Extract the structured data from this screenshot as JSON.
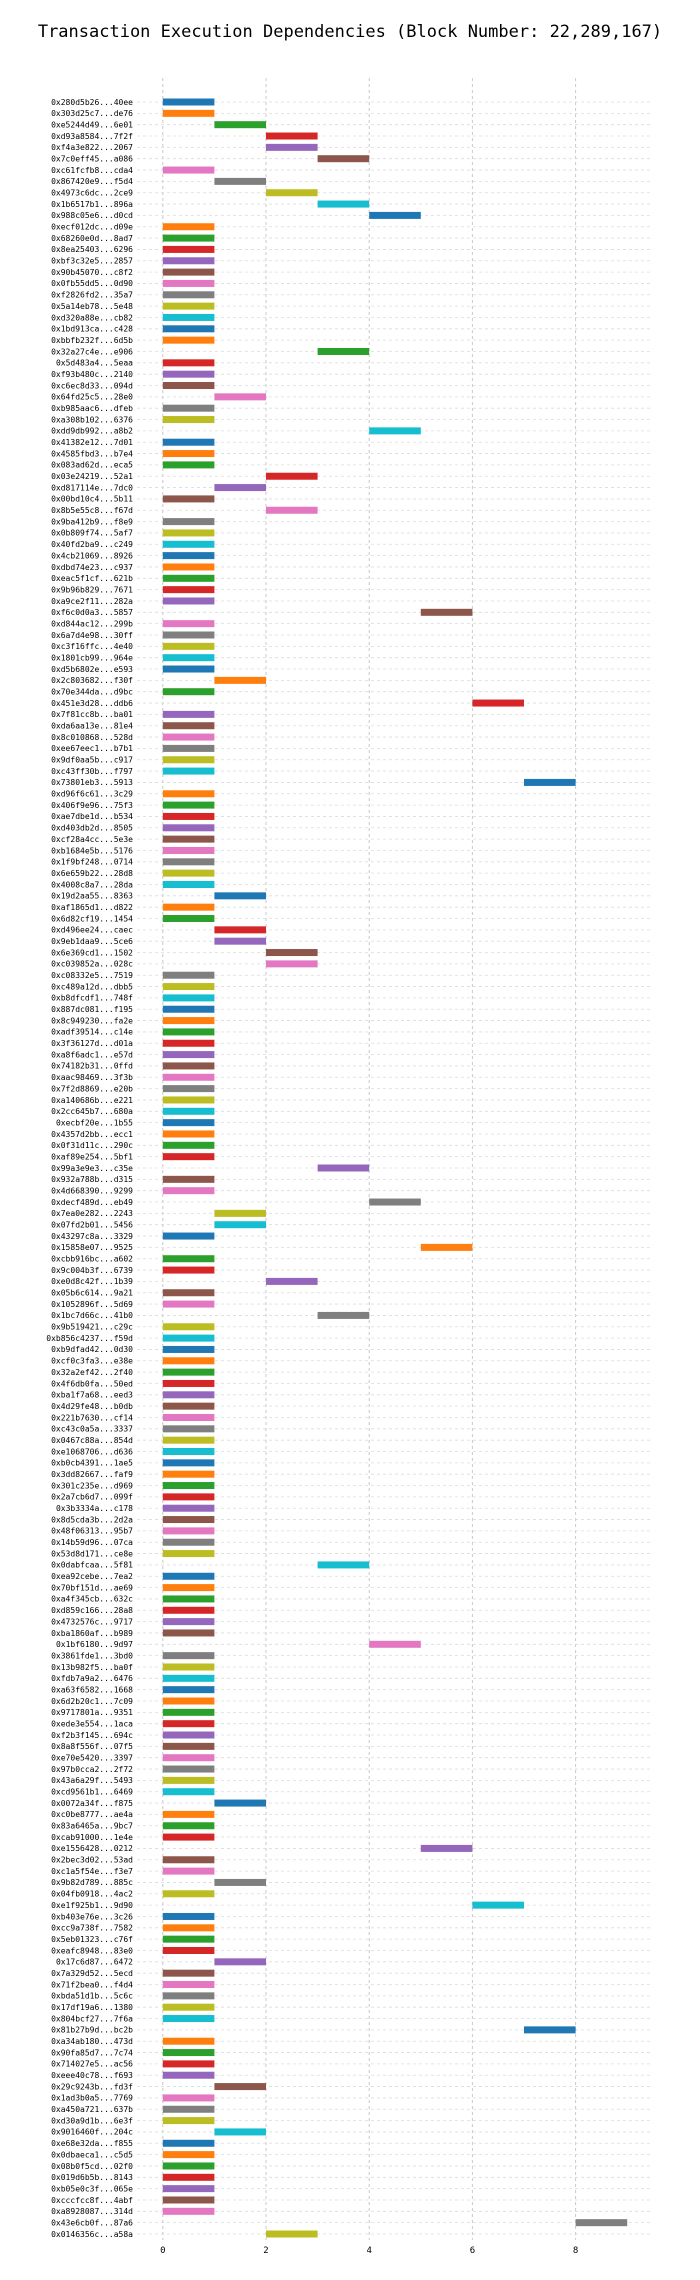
{
  "chart_data": {
    "type": "bar",
    "subtype": "horizontal-gantt",
    "title": "Transaction Execution Dependencies (Block Number: 22,289,167)",
    "xlabel": "",
    "ylabel": "",
    "xlim": [
      -0.5,
      9.5
    ],
    "xticks": [
      0,
      2,
      4,
      6,
      8
    ],
    "grid": true,
    "legend": "none",
    "palette": [
      "#1f77b4",
      "#ff7f0e",
      "#2ca02c",
      "#d62728",
      "#9467bd",
      "#8c564b",
      "#e377c2",
      "#7f7f7f",
      "#bcbd22",
      "#17becf"
    ],
    "transactions": [
      {
        "label": "0x280d5b26...40ee",
        "start": 0,
        "end": 1
      },
      {
        "label": "0x303d25c7...de76",
        "start": 0,
        "end": 1
      },
      {
        "label": "0xe5244d49...6e01",
        "start": 1,
        "end": 2
      },
      {
        "label": "0xd93a8584...7f2f",
        "start": 2,
        "end": 3
      },
      {
        "label": "0xf4a3e822...2067",
        "start": 2,
        "end": 3
      },
      {
        "label": "0x7c0eff45...a086",
        "start": 3,
        "end": 4
      },
      {
        "label": "0xc61fcfb8...cda4",
        "start": 0,
        "end": 1
      },
      {
        "label": "0x867420e9...f5d4",
        "start": 1,
        "end": 2
      },
      {
        "label": "0x4973c6dc...2ce9",
        "start": 2,
        "end": 3
      },
      {
        "label": "0x1b6517b1...896a",
        "start": 3,
        "end": 4
      },
      {
        "label": "0x988c05e6...d0cd",
        "start": 4,
        "end": 5
      },
      {
        "label": "0xecf012dc...d09e",
        "start": 0,
        "end": 1
      },
      {
        "label": "0x68260e0d...8ad7",
        "start": 0,
        "end": 1
      },
      {
        "label": "0x8ea25403...6296",
        "start": 0,
        "end": 1
      },
      {
        "label": "0xbf3c32e5...2857",
        "start": 0,
        "end": 1
      },
      {
        "label": "0x90b45070...c8f2",
        "start": 0,
        "end": 1
      },
      {
        "label": "0x0fb55dd5...0d90",
        "start": 0,
        "end": 1
      },
      {
        "label": "0xf2826fd2...35a7",
        "start": 0,
        "end": 1
      },
      {
        "label": "0x5a14eb78...5e48",
        "start": 0,
        "end": 1
      },
      {
        "label": "0xd320a88e...cb82",
        "start": 0,
        "end": 1
      },
      {
        "label": "0x1bd913ca...c428",
        "start": 0,
        "end": 1
      },
      {
        "label": "0xbbfb232f...6d5b",
        "start": 0,
        "end": 1
      },
      {
        "label": "0x32a27c4e...e906",
        "start": 3,
        "end": 4
      },
      {
        "label": "0x5d483a4...5eaa",
        "start": 0,
        "end": 1
      },
      {
        "label": "0xf93b480c...2140",
        "start": 0,
        "end": 1
      },
      {
        "label": "0xc6ec8d33...094d",
        "start": 0,
        "end": 1
      },
      {
        "label": "0x64fd25c5...28e0",
        "start": 1,
        "end": 2
      },
      {
        "label": "0xb985aac6...dfeb",
        "start": 0,
        "end": 1
      },
      {
        "label": "0xa308b102...6376",
        "start": 0,
        "end": 1
      },
      {
        "label": "0xdd9db992...a8b2",
        "start": 4,
        "end": 5
      },
      {
        "label": "0x41382e12...7d01",
        "start": 0,
        "end": 1
      },
      {
        "label": "0x4585fbd3...b7e4",
        "start": 0,
        "end": 1
      },
      {
        "label": "0x083ad62d...eca5",
        "start": 0,
        "end": 1
      },
      {
        "label": "0x03e24219...52a1",
        "start": 2,
        "end": 3
      },
      {
        "label": "0xd817114e...7dc0",
        "start": 1,
        "end": 2
      },
      {
        "label": "0x00bd10c4...5b11",
        "start": 0,
        "end": 1
      },
      {
        "label": "0x8b5e55c8...f67d",
        "start": 2,
        "end": 3
      },
      {
        "label": "0x9ba412b9...f8e9",
        "start": 0,
        "end": 1
      },
      {
        "label": "0x0b809f74...5af7",
        "start": 0,
        "end": 1
      },
      {
        "label": "0x40fd2ba9...c249",
        "start": 0,
        "end": 1
      },
      {
        "label": "0x4cb21069...8926",
        "start": 0,
        "end": 1
      },
      {
        "label": "0xdbd74e23...c937",
        "start": 0,
        "end": 1
      },
      {
        "label": "0xeac5f1cf...621b",
        "start": 0,
        "end": 1
      },
      {
        "label": "0x9b96b829...7671",
        "start": 0,
        "end": 1
      },
      {
        "label": "0xa9ce2f11...282a",
        "start": 0,
        "end": 1
      },
      {
        "label": "0xf6c0d0a3...5857",
        "start": 5,
        "end": 6
      },
      {
        "label": "0xd844ac12...299b",
        "start": 0,
        "end": 1
      },
      {
        "label": "0x6a7d4e98...30ff",
        "start": 0,
        "end": 1
      },
      {
        "label": "0xc3f16ffc...4e40",
        "start": 0,
        "end": 1
      },
      {
        "label": "0x1801cb99...964e",
        "start": 0,
        "end": 1
      },
      {
        "label": "0xd5b6802e...e593",
        "start": 0,
        "end": 1
      },
      {
        "label": "0x2c803682...f30f",
        "start": 1,
        "end": 2
      },
      {
        "label": "0x70e344da...d9bc",
        "start": 0,
        "end": 1
      },
      {
        "label": "0x451e3d28...ddb6",
        "start": 6,
        "end": 7
      },
      {
        "label": "0x7f81cc8b...ba01",
        "start": 0,
        "end": 1
      },
      {
        "label": "0xda6aa13e...81e4",
        "start": 0,
        "end": 1
      },
      {
        "label": "0x8c010868...528d",
        "start": 0,
        "end": 1
      },
      {
        "label": "0xee67eec1...b7b1",
        "start": 0,
        "end": 1
      },
      {
        "label": "0x9df0aa5b...c917",
        "start": 0,
        "end": 1
      },
      {
        "label": "0xc43ff30b...f797",
        "start": 0,
        "end": 1
      },
      {
        "label": "0x73801eb3...5913",
        "start": 7,
        "end": 8
      },
      {
        "label": "0xd96f6c61...3c29",
        "start": 0,
        "end": 1
      },
      {
        "label": "0x406f9e96...75f3",
        "start": 0,
        "end": 1
      },
      {
        "label": "0xae7dbe1d...b534",
        "start": 0,
        "end": 1
      },
      {
        "label": "0xd403db2d...8505",
        "start": 0,
        "end": 1
      },
      {
        "label": "0xcf28a4cc...5e3e",
        "start": 0,
        "end": 1
      },
      {
        "label": "0xb1684e5b...5176",
        "start": 0,
        "end": 1
      },
      {
        "label": "0x1f9bf248...0714",
        "start": 0,
        "end": 1
      },
      {
        "label": "0x6e659b22...28d8",
        "start": 0,
        "end": 1
      },
      {
        "label": "0x4008c8a7...28da",
        "start": 0,
        "end": 1
      },
      {
        "label": "0x19d2aa55...8363",
        "start": 1,
        "end": 2
      },
      {
        "label": "0xaf1865d1...d822",
        "start": 0,
        "end": 1
      },
      {
        "label": "0x6d82cf19...1454",
        "start": 0,
        "end": 1
      },
      {
        "label": "0xd496ee24...caec",
        "start": 1,
        "end": 2
      },
      {
        "label": "0x9eb1daa9...5ce6",
        "start": 1,
        "end": 2
      },
      {
        "label": "0x6e369cd1...1502",
        "start": 2,
        "end": 3
      },
      {
        "label": "0xc039852a...028c",
        "start": 2,
        "end": 3
      },
      {
        "label": "0xc08332e5...7519",
        "start": 0,
        "end": 1
      },
      {
        "label": "0xc489a12d...dbb5",
        "start": 0,
        "end": 1
      },
      {
        "label": "0xb8dfcdf1...748f",
        "start": 0,
        "end": 1
      },
      {
        "label": "0x887dc081...f195",
        "start": 0,
        "end": 1
      },
      {
        "label": "0x8c949230...fa2e",
        "start": 0,
        "end": 1
      },
      {
        "label": "0xadf39514...c14e",
        "start": 0,
        "end": 1
      },
      {
        "label": "0x3f36127d...d01a",
        "start": 0,
        "end": 1
      },
      {
        "label": "0xa8f6adc1...e57d",
        "start": 0,
        "end": 1
      },
      {
        "label": "0x74182b31...0ffd",
        "start": 0,
        "end": 1
      },
      {
        "label": "0xaac98469...3f3b",
        "start": 0,
        "end": 1
      },
      {
        "label": "0x7f2d8869...e20b",
        "start": 0,
        "end": 1
      },
      {
        "label": "0xa140686b...e221",
        "start": 0,
        "end": 1
      },
      {
        "label": "0x2cc645b7...680a",
        "start": 0,
        "end": 1
      },
      {
        "label": "0xecbf20e...1b55",
        "start": 0,
        "end": 1
      },
      {
        "label": "0x4357d2bb...ecc1",
        "start": 0,
        "end": 1
      },
      {
        "label": "0x0f31d11c...290c",
        "start": 0,
        "end": 1
      },
      {
        "label": "0xaf89e254...5bf1",
        "start": 0,
        "end": 1
      },
      {
        "label": "0x99a3e9e3...c35e",
        "start": 3,
        "end": 4
      },
      {
        "label": "0x932a788b...d315",
        "start": 0,
        "end": 1
      },
      {
        "label": "0x4d668390...9299",
        "start": 0,
        "end": 1
      },
      {
        "label": "0xdecf489d...eb49",
        "start": 4,
        "end": 5
      },
      {
        "label": "0x7ea0e282...2243",
        "start": 1,
        "end": 2
      },
      {
        "label": "0x07fd2b01...5456",
        "start": 1,
        "end": 2
      },
      {
        "label": "0x43297c8a...3329",
        "start": 0,
        "end": 1
      },
      {
        "label": "0x15858e07...9525",
        "start": 5,
        "end": 6
      },
      {
        "label": "0xcbb916bc...a602",
        "start": 0,
        "end": 1
      },
      {
        "label": "0x9c004b3f...6739",
        "start": 0,
        "end": 1
      },
      {
        "label": "0xe0d8c42f...1b39",
        "start": 2,
        "end": 3
      },
      {
        "label": "0x05b6c614...9a21",
        "start": 0,
        "end": 1
      },
      {
        "label": "0x1052896f...5d69",
        "start": 0,
        "end": 1
      },
      {
        "label": "0x1bc7d66c...41b0",
        "start": 3,
        "end": 4
      },
      {
        "label": "0x9b519421...c29c",
        "start": 0,
        "end": 1
      },
      {
        "label": "0xb856c4237...f59d",
        "start": 0,
        "end": 1
      },
      {
        "label": "0xb9dfad42...0d30",
        "start": 0,
        "end": 1
      },
      {
        "label": "0xcf0c3fa3...e38e",
        "start": 0,
        "end": 1
      },
      {
        "label": "0x32a2ef42...2f40",
        "start": 0,
        "end": 1
      },
      {
        "label": "0x4f6db0fa...50ed",
        "start": 0,
        "end": 1
      },
      {
        "label": "0xba1f7a68...eed3",
        "start": 0,
        "end": 1
      },
      {
        "label": "0x4d29fe48...b0db",
        "start": 0,
        "end": 1
      },
      {
        "label": "0x221b7630...cf14",
        "start": 0,
        "end": 1
      },
      {
        "label": "0xc43c0a5a...3337",
        "start": 0,
        "end": 1
      },
      {
        "label": "0x0467c88a...854d",
        "start": 0,
        "end": 1
      },
      {
        "label": "0xe1068706...d636",
        "start": 0,
        "end": 1
      },
      {
        "label": "0xb0cb4391...1ae5",
        "start": 0,
        "end": 1
      },
      {
        "label": "0x3dd82667...faf9",
        "start": 0,
        "end": 1
      },
      {
        "label": "0x301c235e...d969",
        "start": 0,
        "end": 1
      },
      {
        "label": "0x2a7cb6d7...099f",
        "start": 0,
        "end": 1
      },
      {
        "label": "0x3b3334a...c178",
        "start": 0,
        "end": 1
      },
      {
        "label": "0x8d5cda3b...2d2a",
        "start": 0,
        "end": 1
      },
      {
        "label": "0x48f06313...95b7",
        "start": 0,
        "end": 1
      },
      {
        "label": "0x14b59d96...07ca",
        "start": 0,
        "end": 1
      },
      {
        "label": "0x53d8d171...ce8e",
        "start": 0,
        "end": 1
      },
      {
        "label": "0x0dabfcaa...5f81",
        "start": 3,
        "end": 4
      },
      {
        "label": "0xea92cebe...7ea2",
        "start": 0,
        "end": 1
      },
      {
        "label": "0x70bf151d...ae69",
        "start": 0,
        "end": 1
      },
      {
        "label": "0xa4f345cb...632c",
        "start": 0,
        "end": 1
      },
      {
        "label": "0xd859c166...28a8",
        "start": 0,
        "end": 1
      },
      {
        "label": "0x4732576c...9717",
        "start": 0,
        "end": 1
      },
      {
        "label": "0xba1860af...b989",
        "start": 0,
        "end": 1
      },
      {
        "label": "0x1bf6180...9d97",
        "start": 4,
        "end": 5
      },
      {
        "label": "0x3861fde1...3bd0",
        "start": 0,
        "end": 1
      },
      {
        "label": "0x13b982f5...ba0f",
        "start": 0,
        "end": 1
      },
      {
        "label": "0xfdb7a9a2...6476",
        "start": 0,
        "end": 1
      },
      {
        "label": "0xa63f6582...1668",
        "start": 0,
        "end": 1
      },
      {
        "label": "0x6d2b20c1...7c09",
        "start": 0,
        "end": 1
      },
      {
        "label": "0x9717801a...9351",
        "start": 0,
        "end": 1
      },
      {
        "label": "0xede3e554...1aca",
        "start": 0,
        "end": 1
      },
      {
        "label": "0xf2b3f145...694c",
        "start": 0,
        "end": 1
      },
      {
        "label": "0x8a8f556f...07f5",
        "start": 0,
        "end": 1
      },
      {
        "label": "0xe70e5420...3397",
        "start": 0,
        "end": 1
      },
      {
        "label": "0x97b0cca2...2f72",
        "start": 0,
        "end": 1
      },
      {
        "label": "0x43a6a29f...5493",
        "start": 0,
        "end": 1
      },
      {
        "label": "0xcd9561b1...6469",
        "start": 0,
        "end": 1
      },
      {
        "label": "0x0072a34f...f875",
        "start": 1,
        "end": 2
      },
      {
        "label": "0xc0be8777...ae4a",
        "start": 0,
        "end": 1
      },
      {
        "label": "0x83a6465a...9bc7",
        "start": 0,
        "end": 1
      },
      {
        "label": "0xcab91000...1e4e",
        "start": 0,
        "end": 1
      },
      {
        "label": "0xe1556428...0212",
        "start": 5,
        "end": 6
      },
      {
        "label": "0x2bec3d02...53ad",
        "start": 0,
        "end": 1
      },
      {
        "label": "0xc1a5f54e...f3e7",
        "start": 0,
        "end": 1
      },
      {
        "label": "0x9b82d789...885c",
        "start": 1,
        "end": 2
      },
      {
        "label": "0x04fb0918...4ac2",
        "start": 0,
        "end": 1
      },
      {
        "label": "0xe1f925b1...9d90",
        "start": 6,
        "end": 7
      },
      {
        "label": "0xb403e76e...3c26",
        "start": 0,
        "end": 1
      },
      {
        "label": "0xcc9a738f...7582",
        "start": 0,
        "end": 1
      },
      {
        "label": "0x5eb01323...c76f",
        "start": 0,
        "end": 1
      },
      {
        "label": "0xeafc8948...83e0",
        "start": 0,
        "end": 1
      },
      {
        "label": "0x17c6d87...6472",
        "start": 1,
        "end": 2
      },
      {
        "label": "0x7a329d52...5ecd",
        "start": 0,
        "end": 1
      },
      {
        "label": "0x71f2bea0...f4d4",
        "start": 0,
        "end": 1
      },
      {
        "label": "0xbda51d1b...5c6c",
        "start": 0,
        "end": 1
      },
      {
        "label": "0x17df19a6...1380",
        "start": 0,
        "end": 1
      },
      {
        "label": "0x804bcf27...7f6a",
        "start": 0,
        "end": 1
      },
      {
        "label": "0x81b27b9d...bc2b",
        "start": 7,
        "end": 8
      },
      {
        "label": "0xa34ab180...473d",
        "start": 0,
        "end": 1
      },
      {
        "label": "0x90fa85d7...7c74",
        "start": 0,
        "end": 1
      },
      {
        "label": "0x714027e5...ac56",
        "start": 0,
        "end": 1
      },
      {
        "label": "0xeee40c78...f693",
        "start": 0,
        "end": 1
      },
      {
        "label": "0x29c9243b...fd3f",
        "start": 1,
        "end": 2
      },
      {
        "label": "0x1ad3b0a5...7769",
        "start": 0,
        "end": 1
      },
      {
        "label": "0xa450a721...637b",
        "start": 0,
        "end": 1
      },
      {
        "label": "0xd30a9d1b...6e3f",
        "start": 0,
        "end": 1
      },
      {
        "label": "0x9016460f...204c",
        "start": 1,
        "end": 2
      },
      {
        "label": "0xe68e32da...f855",
        "start": 0,
        "end": 1
      },
      {
        "label": "0x0dbaeca1...c5d5",
        "start": 0,
        "end": 1
      },
      {
        "label": "0x08b0f5cd...02f0",
        "start": 0,
        "end": 1
      },
      {
        "label": "0x019d6b5b...8143",
        "start": 0,
        "end": 1
      },
      {
        "label": "0xb05e0c3f...065e",
        "start": 0,
        "end": 1
      },
      {
        "label": "0xcccfcc8f...4abf",
        "start": 0,
        "end": 1
      },
      {
        "label": "0xa8928087...314d",
        "start": 0,
        "end": 1
      },
      {
        "label": "0x43e6cb0f...87a6",
        "start": 8,
        "end": 9
      },
      {
        "label": "0x0146356c...a58a",
        "start": 2,
        "end": 3
      }
    ]
  }
}
